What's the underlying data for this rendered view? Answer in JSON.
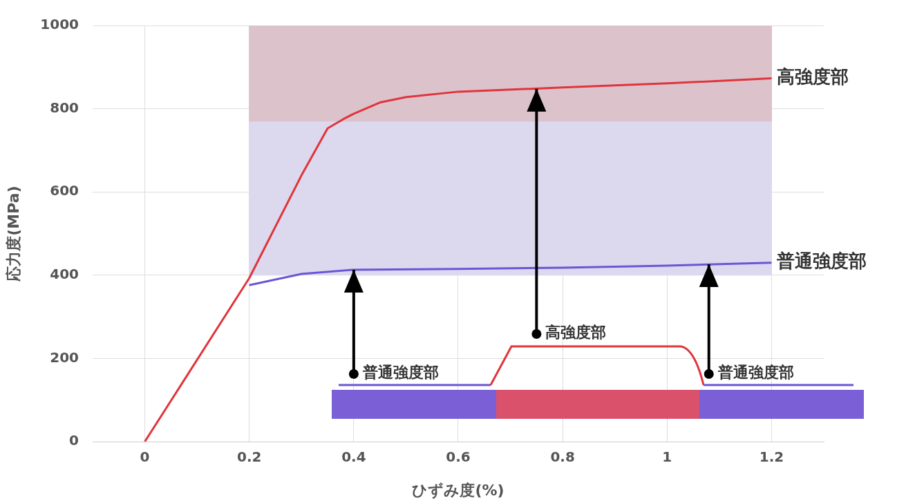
{
  "chart_data": {
    "type": "line",
    "xlabel": "ひずみ度(%)",
    "ylabel": "応力度(MPa)",
    "xlim": [
      -0.1,
      1.3
    ],
    "xticks": [
      0,
      0.2,
      0.4,
      0.6,
      0.8,
      1,
      1.2
    ],
    "ylim": [
      0,
      1000
    ],
    "yticks": [
      0,
      200,
      400,
      600,
      800,
      1000
    ],
    "grid": true,
    "legend": false,
    "marker": "none",
    "line_style": "solid",
    "series": [
      {
        "type": "area",
        "color": "#dcc3cb",
        "x": [
          0.2,
          1.2
        ],
        "values": [
          null,
          null
        ],
        "lower": [
          770,
          770
        ],
        "upper": [
          1000,
          1000
        ]
      },
      {
        "type": "area",
        "color": "#dcd9ee",
        "x": [
          0.2,
          1.2
        ],
        "values": [
          null,
          null
        ],
        "lower": [
          400,
          400
        ],
        "upper": [
          770,
          770
        ]
      },
      {
        "type": "line",
        "name": "高強度部",
        "color": "#e0343c",
        "x": [
          0,
          0.2,
          0.3,
          0.35,
          0.38,
          0.4,
          0.45,
          0.5,
          0.6,
          0.8,
          1,
          1.2
        ],
        "values": [
          0,
          393,
          640,
          753,
          775,
          788,
          815,
          828,
          841,
          851,
          861,
          873
        ]
      },
      {
        "type": "line",
        "name": "普通強度部",
        "color": "#6b55d6",
        "x": [
          0.2,
          0.3,
          0.4,
          0.6,
          0.8,
          1,
          1.2
        ],
        "values": [
          376,
          403,
          413,
          415,
          418,
          423,
          430
        ]
      }
    ],
    "annotations": [
      {
        "text": "普通強度部",
        "x": 0.4,
        "y": 413
      },
      {
        "text": "高強度部",
        "x": 0.75,
        "y": 848
      },
      {
        "text": "普通強度部",
        "x": 1.08,
        "y": 426
      }
    ]
  }
}
